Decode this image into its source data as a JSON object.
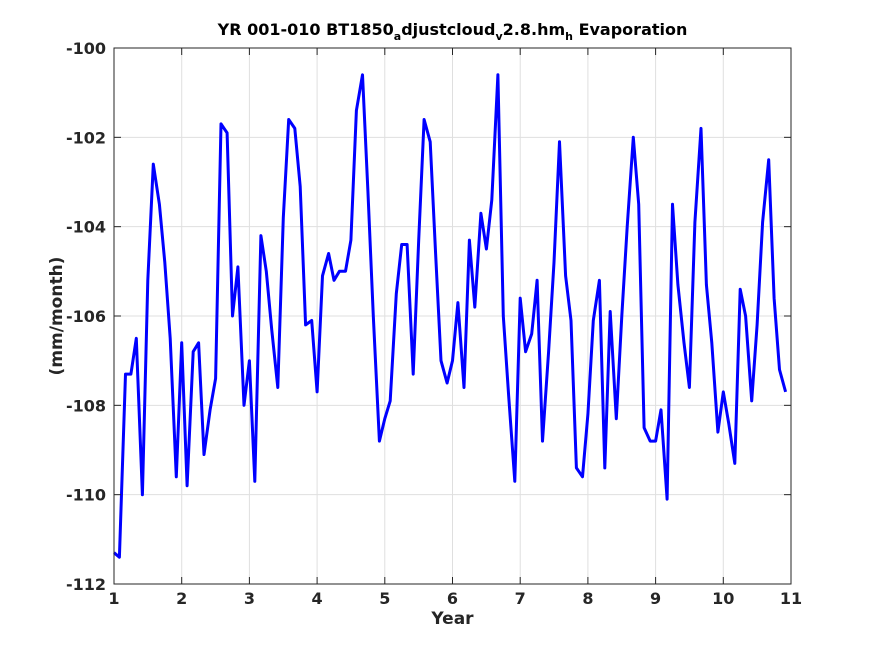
{
  "chart_data": {
    "type": "line",
    "title": {
      "parts": [
        {
          "text": "YR 001-010 BT1850",
          "sub": false
        },
        {
          "text": "a",
          "sub": true
        },
        {
          "text": "djustcloud",
          "sub": false
        },
        {
          "text": "v",
          "sub": true
        },
        {
          "text": "2.8.hm",
          "sub": false
        },
        {
          "text": "h",
          "sub": true
        },
        {
          "text": " Evaporation",
          "sub": false
        }
      ]
    },
    "xlabel": "Year",
    "ylabel": "(mm/month)",
    "xlim": [
      1,
      11
    ],
    "ylim": [
      -112,
      -100
    ],
    "xticks": [
      1,
      2,
      3,
      4,
      5,
      6,
      7,
      8,
      9,
      10,
      11
    ],
    "yticks": [
      -112,
      -110,
      -108,
      -106,
      -104,
      -102,
      -100
    ],
    "grid": true,
    "line_color": "#0000ff",
    "series": [
      {
        "x": [
          1.0,
          1.08,
          1.17,
          1.25,
          1.33,
          1.42,
          1.5,
          1.58,
          1.67,
          1.75,
          1.83,
          1.92,
          2.0,
          2.08,
          2.17,
          2.25,
          2.33,
          2.42,
          2.5,
          2.58,
          2.67,
          2.75,
          2.83,
          2.92,
          3.0,
          3.08,
          3.17,
          3.25,
          3.33,
          3.42,
          3.5,
          3.58,
          3.67,
          3.75,
          3.83,
          3.92,
          4.0,
          4.08,
          4.17,
          4.25,
          4.33,
          4.42,
          4.5,
          4.58,
          4.67,
          4.75,
          4.83,
          4.92,
          5.0,
          5.08,
          5.17,
          5.25,
          5.33,
          5.42,
          5.5,
          5.58,
          5.67,
          5.75,
          5.83,
          5.92,
          6.0,
          6.08,
          6.17,
          6.25,
          6.33,
          6.42,
          6.5,
          6.58,
          6.67,
          6.75,
          6.83,
          6.92,
          7.0,
          7.08,
          7.17,
          7.25,
          7.33,
          7.42,
          7.5,
          7.58,
          7.67,
          7.75,
          7.83,
          7.92,
          8.0,
          8.08,
          8.17,
          8.25,
          8.33,
          8.42,
          8.5,
          8.58,
          8.67,
          8.75,
          8.83,
          8.92,
          9.0,
          9.08,
          9.17,
          9.25,
          9.33,
          9.42,
          9.5,
          9.58,
          9.67,
          9.75,
          9.83,
          9.92,
          10.0,
          10.08,
          10.17,
          10.25,
          10.33,
          10.42,
          10.5,
          10.58,
          10.67,
          10.75,
          10.83,
          10.92
        ],
        "y": [
          -111.3,
          -111.4,
          -107.3,
          -107.3,
          -106.5,
          -110.0,
          -105.2,
          -102.6,
          -103.5,
          -104.8,
          -106.5,
          -109.6,
          -106.6,
          -109.8,
          -106.8,
          -106.6,
          -109.1,
          -108.1,
          -107.4,
          -101.7,
          -101.9,
          -106.0,
          -104.9,
          -108.0,
          -107.0,
          -109.7,
          -104.2,
          -105.0,
          -106.3,
          -107.6,
          -103.8,
          -101.6,
          -101.8,
          -103.1,
          -106.2,
          -106.1,
          -107.7,
          -105.1,
          -104.6,
          -105.2,
          -105.0,
          -105.0,
          -104.3,
          -101.4,
          -100.6,
          -103.2,
          -106.0,
          -108.8,
          -108.3,
          -107.9,
          -105.5,
          -104.4,
          -104.4,
          -107.3,
          -104.3,
          -101.6,
          -102.1,
          -104.6,
          -107.0,
          -107.5,
          -107.0,
          -105.7,
          -107.6,
          -104.3,
          -105.8,
          -103.7,
          -104.5,
          -103.4,
          -100.6,
          -106.0,
          -107.8,
          -109.7,
          -105.6,
          -106.8,
          -106.4,
          -105.2,
          -108.8,
          -106.8,
          -104.8,
          -102.1,
          -105.1,
          -106.1,
          -109.4,
          -109.6,
          -108.2,
          -106.1,
          -105.2,
          -109.4,
          -105.9,
          -108.3,
          -106.0,
          -104.0,
          -102.0,
          -103.5,
          -108.5,
          -108.8,
          -108.8,
          -108.1,
          -110.1,
          -103.5,
          -105.3,
          -106.6,
          -107.6,
          -103.9,
          -101.8,
          -105.3,
          -106.6,
          -108.6,
          -107.7,
          -108.4,
          -109.3,
          -105.4,
          -106.0,
          -107.9,
          -106.2,
          -103.9,
          -102.5,
          -105.6,
          -107.2,
          -107.7
        ]
      }
    ]
  }
}
